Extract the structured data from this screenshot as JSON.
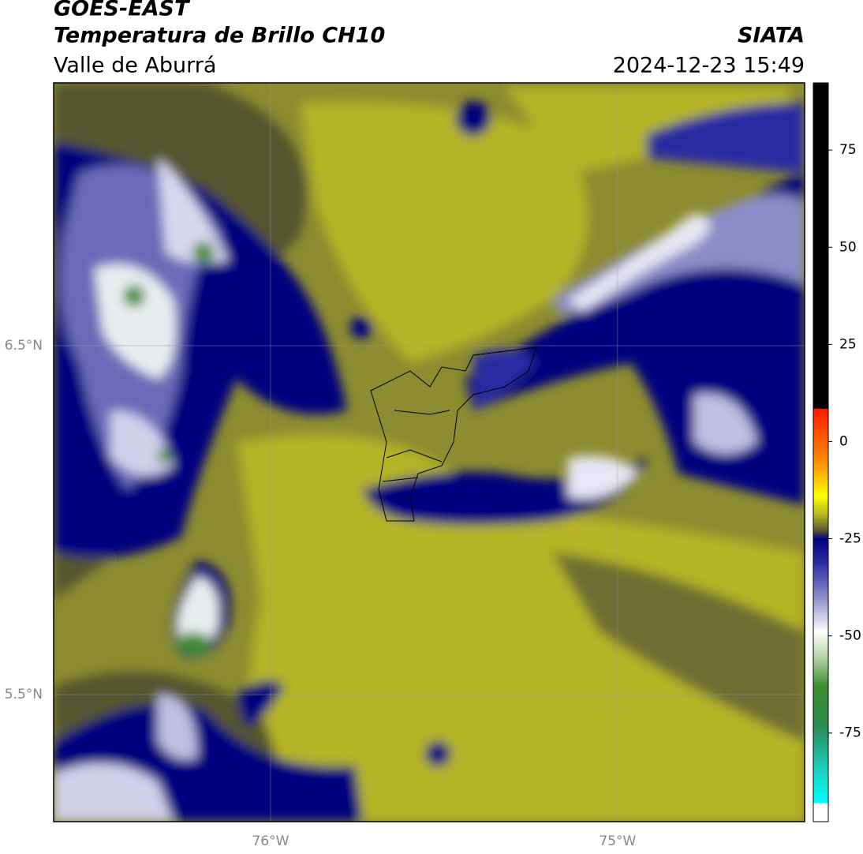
{
  "header": {
    "title": "GOES-EAST",
    "subtitle": "Temperatura de Brillo CH10",
    "region": "Valle de Aburrá",
    "source": "SIATA",
    "datetime": "2024-12-23 15:49"
  },
  "map": {
    "xlim": [
      -76.625,
      -74.461
    ],
    "ylim": [
      5.136,
      7.253
    ],
    "xticks": [
      {
        "value": -76,
        "label": "76°W"
      },
      {
        "value": -75,
        "label": "75°W"
      }
    ],
    "yticks": [
      {
        "value": 6.5,
        "label": "6.5°N"
      },
      {
        "value": 5.5,
        "label": "5.5°N"
      }
    ],
    "grid": true
  },
  "colorbar": {
    "lim": [
      -97.8,
      92.3
    ],
    "ticks": [
      75,
      50,
      25,
      0,
      -25,
      -50,
      -75
    ],
    "stops": [
      {
        "value": 92.3,
        "color": "#000000"
      },
      {
        "value": 8.5,
        "color": "#000000"
      },
      {
        "value": 8.4,
        "color": "#ff1a00"
      },
      {
        "value": -5,
        "color": "#ff8c00"
      },
      {
        "value": -14,
        "color": "#ffff00"
      },
      {
        "value": -19,
        "color": "#b4b428"
      },
      {
        "value": -23,
        "color": "#55552e"
      },
      {
        "value": -25,
        "color": "#000080"
      },
      {
        "value": -31,
        "color": "#2a2aa0"
      },
      {
        "value": -40,
        "color": "#8c8cc8"
      },
      {
        "value": -49,
        "color": "#ffffff"
      },
      {
        "value": -56,
        "color": "#b0d0a0"
      },
      {
        "value": -63,
        "color": "#3c8c2c"
      },
      {
        "value": -73,
        "color": "#2a8a50"
      },
      {
        "value": -83,
        "color": "#1ec8b4"
      },
      {
        "value": -93,
        "color": "#00ffff"
      },
      {
        "value": -93.1,
        "color": "#ffffff"
      },
      {
        "value": -97.8,
        "color": "#ffffff"
      }
    ]
  }
}
